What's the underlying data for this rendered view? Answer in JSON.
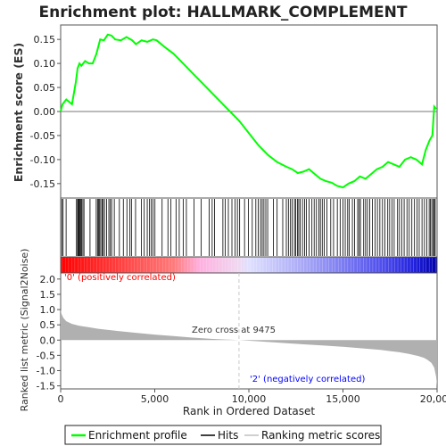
{
  "chart_data": {
    "type": "line",
    "title": "Enrichment plot: HALLMARK_COMPLEMENT",
    "xlabel": "Rank in Ordered Dataset",
    "xlim": [
      0,
      20000
    ],
    "x_ticks": [
      0,
      5000,
      10000,
      15000,
      20000
    ],
    "x_tick_labels": [
      "0",
      "5,000",
      "10,000",
      "15,000",
      "20,000"
    ],
    "es_panel": {
      "ylabel": "Enrichment score (ES)",
      "ylim": [
        -0.18,
        0.18
      ],
      "y_ticks": [
        -0.15,
        -0.1,
        -0.05,
        0.0,
        0.05,
        0.1,
        0.15
      ],
      "y_tick_labels": [
        "-0.15",
        "-0.10",
        "-0.05",
        "0.00",
        "0.05",
        "0.10",
        "0.15"
      ],
      "series": [
        {
          "name": "Enrichment profile",
          "color": "#00ff00",
          "x": [
            0,
            100,
            300,
            600,
            800,
            900,
            1000,
            1100,
            1300,
            1500,
            1700,
            1900,
            2100,
            2300,
            2500,
            2700,
            2900,
            3200,
            3500,
            3800,
            4000,
            4300,
            4600,
            4900,
            5100,
            5500,
            6000,
            6500,
            7000,
            7500,
            8000,
            8500,
            9000,
            9500,
            10000,
            10500,
            11000,
            11500,
            12000,
            12300,
            12600,
            12900,
            13200,
            13500,
            13800,
            14100,
            14400,
            14700,
            15000,
            15300,
            15600,
            15900,
            16200,
            16500,
            16800,
            17100,
            17400,
            17700,
            18000,
            18300,
            18600,
            18900,
            19200,
            19400,
            19600,
            19750,
            19850,
            19950
          ],
          "y": [
            0.0,
            0.015,
            0.025,
            0.015,
            0.06,
            0.09,
            0.1,
            0.095,
            0.105,
            0.1,
            0.1,
            0.12,
            0.15,
            0.148,
            0.16,
            0.158,
            0.15,
            0.148,
            0.155,
            0.148,
            0.14,
            0.148,
            0.145,
            0.15,
            0.148,
            0.135,
            0.12,
            0.1,
            0.08,
            0.06,
            0.04,
            0.02,
            0.0,
            -0.02,
            -0.045,
            -0.07,
            -0.09,
            -0.105,
            -0.115,
            -0.12,
            -0.128,
            -0.125,
            -0.12,
            -0.13,
            -0.14,
            -0.145,
            -0.148,
            -0.155,
            -0.158,
            -0.15,
            -0.145,
            -0.135,
            -0.14,
            -0.13,
            -0.12,
            -0.115,
            -0.105,
            -0.11,
            -0.115,
            -0.1,
            -0.095,
            -0.1,
            -0.11,
            -0.08,
            -0.06,
            -0.05,
            0.01,
            0.005
          ]
        }
      ]
    },
    "hits_panel": {
      "name": "Hits",
      "positions": [
        60,
        130,
        290,
        840,
        900,
        940,
        980,
        1020,
        1060,
        1110,
        1180,
        1240,
        1560,
        1890,
        1960,
        2020,
        2070,
        2130,
        2200,
        2260,
        2330,
        2440,
        2560,
        2640,
        2710,
        2850,
        3120,
        3330,
        3520,
        3680,
        3760,
        3980,
        4290,
        4440,
        4600,
        4710,
        4810,
        4900,
        5010,
        5390,
        5700,
        5860,
        6130,
        6300,
        6510,
        6680,
        7080,
        7470,
        7890,
        8050,
        8180,
        8620,
        8740,
        8910,
        9100,
        9260,
        9390,
        9510,
        9770,
        9980,
        10180,
        10370,
        10500,
        10620,
        10710,
        10800,
        10900,
        11000,
        11300,
        11500,
        11800,
        11990,
        12100,
        12210,
        12300,
        12420,
        12490,
        12580,
        12650,
        12720,
        12850,
        12960,
        13050,
        13200,
        13350,
        13470,
        13590,
        13720,
        13800,
        13900,
        14000,
        14150,
        14350,
        14500,
        14700,
        14850,
        15000,
        15120,
        15250,
        15330,
        15500,
        15620,
        15780,
        15860,
        15930,
        16100,
        16200,
        16300,
        16420,
        16560,
        16700,
        16830,
        16960,
        17100,
        17230,
        17380,
        17480,
        17600,
        17720,
        17900,
        18000,
        18120,
        18250,
        18400,
        18520,
        18660,
        18800,
        18940,
        19050,
        19200,
        19330,
        19460,
        19580,
        19650,
        19720,
        19800,
        19850,
        19900
      ]
    },
    "ranked_panel": {
      "name": "Ranking metric scores",
      "ylabel": "Ranked list metric (Signal2Noise)",
      "ylim": [
        -1.6,
        2.2
      ],
      "y_ticks": [
        -1.5,
        -1.0,
        -0.5,
        0.0,
        0.5,
        1.0,
        1.5,
        2.0
      ],
      "y_tick_labels": [
        "-1.5",
        "-1.0",
        "-0.5",
        "0.0",
        "0.5",
        "1.0",
        "1.5",
        "2.0"
      ],
      "x": [
        0,
        50,
        150,
        300,
        600,
        1000,
        1500,
        2000,
        3000,
        4000,
        5000,
        6000,
        7000,
        8000,
        9475,
        10500,
        12000,
        13000,
        14000,
        15000,
        16000,
        17000,
        17500,
        18000,
        18500,
        19000,
        19300,
        19500,
        19700,
        19850,
        19950,
        20000
      ],
      "y": [
        1.0,
        0.85,
        0.72,
        0.62,
        0.53,
        0.47,
        0.42,
        0.37,
        0.3,
        0.24,
        0.18,
        0.13,
        0.08,
        0.04,
        0.0,
        -0.04,
        -0.1,
        -0.14,
        -0.18,
        -0.22,
        -0.27,
        -0.32,
        -0.36,
        -0.4,
        -0.45,
        -0.52,
        -0.58,
        -0.65,
        -0.75,
        -0.9,
        -1.2,
        -1.5
      ]
    },
    "zero_cross": 9475,
    "zero_cross_label": "Zero cross at 9475",
    "pos_label": "'0' (positively correlated)",
    "neg_label": "'2' (negatively correlated)",
    "legend": [
      "Enrichment profile",
      "Hits",
      "Ranking metric scores"
    ],
    "legend_placement": "bottom",
    "colors": {
      "profile": "#00ff00",
      "hits": "#000000",
      "metric_fill": "#b0b0b0",
      "pos_label": "#ff0000",
      "neg_label": "#0000ff",
      "zero_line": "#c8c8c8"
    }
  }
}
